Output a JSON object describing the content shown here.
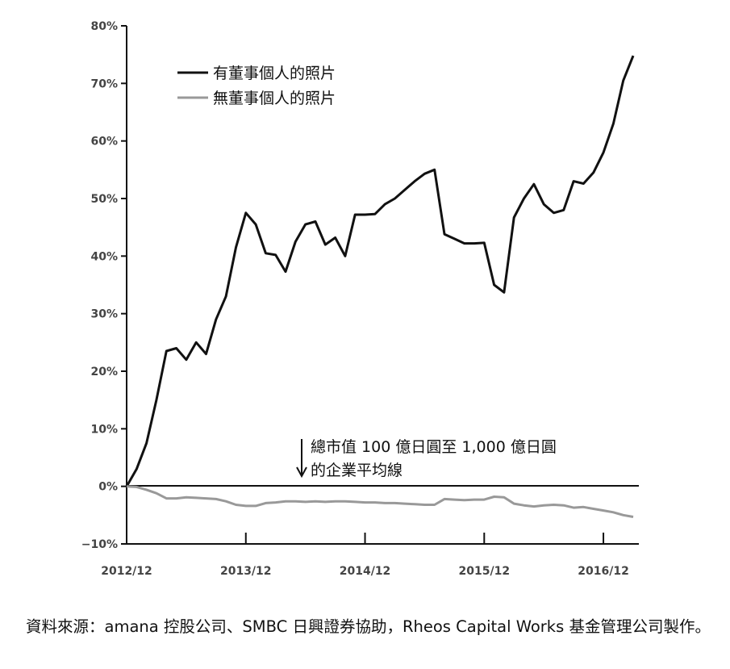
{
  "chart_data": {
    "type": "line",
    "yticks": [
      "80%",
      "70%",
      "60%",
      "50%",
      "40%",
      "30%",
      "20%",
      "10%",
      "0%",
      "−10%"
    ],
    "xticks": [
      "2012/12",
      "2013/12",
      "2014/12",
      "2015/12",
      "2016/12"
    ],
    "ylim": [
      -10,
      80
    ],
    "legend_position": "top-left",
    "grid": false,
    "annotation": {
      "lines": [
        "總市值 100 億日圓至 1,000 億日圓",
        "的企業平均線"
      ],
      "baseline_value": 0
    },
    "series": [
      {
        "name": "有董事個人的照片",
        "color": "#111111",
        "values": [
          0,
          3,
          7.5,
          15,
          23.5,
          24,
          22,
          25,
          23,
          29,
          33,
          41.5,
          47.5,
          45.5,
          40.5,
          40.2,
          37.3,
          42.5,
          45.5,
          46,
          42,
          43.2,
          40,
          47.2,
          47.2,
          47.3,
          49,
          50,
          51.5,
          53,
          54.3,
          55,
          43.8,
          43,
          42.2,
          42.2,
          42.3,
          35,
          33.7,
          46.7,
          50,
          52.5,
          49,
          47.5,
          48,
          53,
          52.6,
          54.5,
          58,
          63,
          70.5,
          74.8
        ]
      },
      {
        "name": "無董事個人的照片",
        "color": "#999999",
        "values": [
          0,
          -0.1,
          -0.6,
          -1.2,
          -2.1,
          -2.1,
          -1.9,
          -2.0,
          -2.1,
          -2.2,
          -2.6,
          -3.2,
          -3.4,
          -3.4,
          -2.9,
          -2.8,
          -2.6,
          -2.6,
          -2.7,
          -2.6,
          -2.7,
          -2.6,
          -2.6,
          -2.7,
          -2.8,
          -2.8,
          -2.9,
          -2.9,
          -3.0,
          -3.1,
          -3.2,
          -3.2,
          -2.2,
          -2.3,
          -2.4,
          -2.3,
          -2.3,
          -1.8,
          -1.9,
          -3.0,
          -3.3,
          -3.5,
          -3.3,
          -3.2,
          -3.3,
          -3.7,
          -3.6,
          -3.9,
          -4.2,
          -4.5,
          -5.0,
          -5.3
        ]
      }
    ]
  },
  "source_note": "資料來源：amana 控股公司、SMBC 日興證券協助，Rheos Capital Works 基金管理公司製作。"
}
